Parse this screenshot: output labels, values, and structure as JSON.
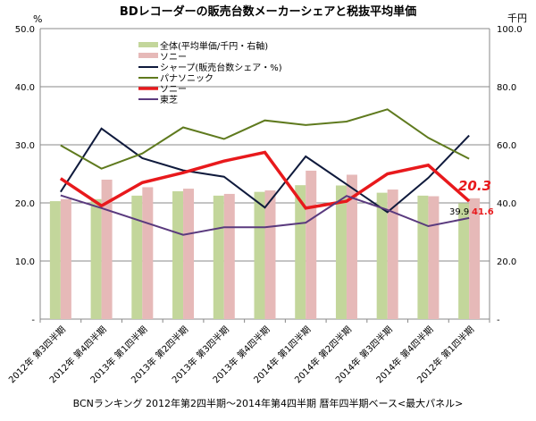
{
  "chart_data": {
    "type": "bar+line",
    "title": "BDレコーダーの販売台数メーカーシェアと税抜平均単価",
    "left_axis_unit": "%",
    "right_axis_unit": "千円",
    "left_ticks": [
      "50.0",
      "40.0",
      "30.0",
      "20.0",
      "10.0",
      "-"
    ],
    "right_ticks": [
      "100.0",
      "80.0",
      "60.0",
      "40.0",
      "20.0",
      "-"
    ],
    "ylim_left": [
      0,
      50
    ],
    "ylim_right": [
      0,
      100
    ],
    "grid": true,
    "legend_position": "top-left",
    "categories": [
      "2012年 第3四半期",
      "2012年 第4四半期",
      "2013年 第1四半期",
      "2013年 第2四半期",
      "2013年 第3四半期",
      "2013年 第4四半期",
      "2014年 第1四半期",
      "2014年 第2四半期",
      "2014年 第3四半期",
      "2014年 第4四半期",
      "2012年 第1四半期"
    ],
    "bar_series": [
      {
        "name": "全体(平均単価/千円・右軸)",
        "color": "#c3d69b",
        "axis": "right",
        "values": [
          40.6,
          41.3,
          42.5,
          44.0,
          42.5,
          43.8,
          46.1,
          46.0,
          43.5,
          42.5,
          39.9
        ]
      },
      {
        "name": "ソニー",
        "color": "#e6b9b8",
        "axis": "right",
        "values": [
          41.3,
          48.0,
          45.4,
          44.9,
          43.1,
          44.3,
          51.1,
          49.7,
          44.6,
          42.3,
          41.6
        ]
      }
    ],
    "line_series": [
      {
        "name": "シャープ(販売台数シェア・%)",
        "color": "#0f1a3c",
        "width": 2,
        "axis": "left",
        "values": [
          21.9,
          32.8,
          27.7,
          25.6,
          24.5,
          19.2,
          28.0,
          23.2,
          18.4,
          24.3,
          31.6
        ]
      },
      {
        "name": "パナソニック",
        "color": "#5f7a1e",
        "width": 2,
        "axis": "left",
        "values": [
          29.9,
          25.9,
          28.5,
          33.0,
          31.0,
          34.2,
          33.4,
          34.0,
          36.1,
          31.2,
          27.6
        ]
      },
      {
        "name": "ソニー",
        "color": "#e8191c",
        "width": 3.5,
        "axis": "left",
        "values": [
          24.2,
          19.5,
          23.5,
          25.2,
          27.2,
          28.7,
          19.1,
          20.3,
          25.0,
          26.5,
          20.3
        ]
      },
      {
        "name": "東芝",
        "color": "#5a3a7e",
        "width": 2,
        "axis": "left",
        "values": [
          21.3,
          19.1,
          16.8,
          14.5,
          15.8,
          15.8,
          16.6,
          21.2,
          18.8,
          16.0,
          17.4
        ]
      }
    ],
    "annotations": {
      "sony_share_last": "20.3",
      "total_price_last": "39.9",
      "sony_price_last": "41.6"
    },
    "footer": "BCNランキング 2012年第2四半期～2014年第4四半期 暦年四半期ベース<最大パネル>"
  }
}
